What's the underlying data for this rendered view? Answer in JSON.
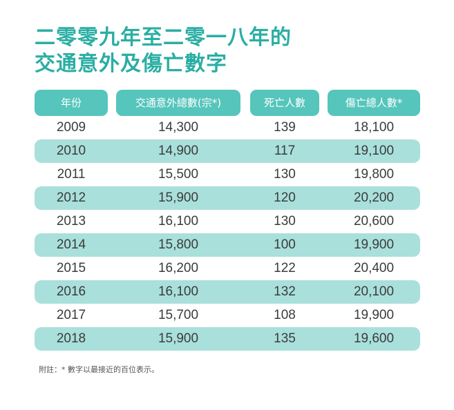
{
  "title": {
    "line1": "二零零九年至二零一八年的",
    "line2": "交通意外及傷亡數字"
  },
  "columns": {
    "year": "年份",
    "accidents": "交通意外總數(宗*)",
    "deaths": "死亡人數",
    "casualties": "傷亡總人數*"
  },
  "rows": [
    {
      "year": "2009",
      "accidents": "14,300",
      "deaths": "139",
      "casualties": "18,100"
    },
    {
      "year": "2010",
      "accidents": "14,900",
      "deaths": "117",
      "casualties": "19,100"
    },
    {
      "year": "2011",
      "accidents": "15,500",
      "deaths": "130",
      "casualties": "19,800"
    },
    {
      "year": "2012",
      "accidents": "15,900",
      "deaths": "120",
      "casualties": "20,200"
    },
    {
      "year": "2013",
      "accidents": "16,100",
      "deaths": "130",
      "casualties": "20,600"
    },
    {
      "year": "2014",
      "accidents": "15,800",
      "deaths": "100",
      "casualties": "19,900"
    },
    {
      "year": "2015",
      "accidents": "16,200",
      "deaths": "122",
      "casualties": "20,400"
    },
    {
      "year": "2016",
      "accidents": "16,100",
      "deaths": "132",
      "casualties": "20,100"
    },
    {
      "year": "2017",
      "accidents": "15,700",
      "deaths": "108",
      "casualties": "19,900"
    },
    {
      "year": "2018",
      "accidents": "15,900",
      "deaths": "135",
      "casualties": "19,600"
    }
  ],
  "note": "附註：* 數字以最接近的百位表示。",
  "colors": {
    "title": "#2aaea3",
    "header_bg": "#56c5bc",
    "stripe_bg": "#a9e0db"
  }
}
